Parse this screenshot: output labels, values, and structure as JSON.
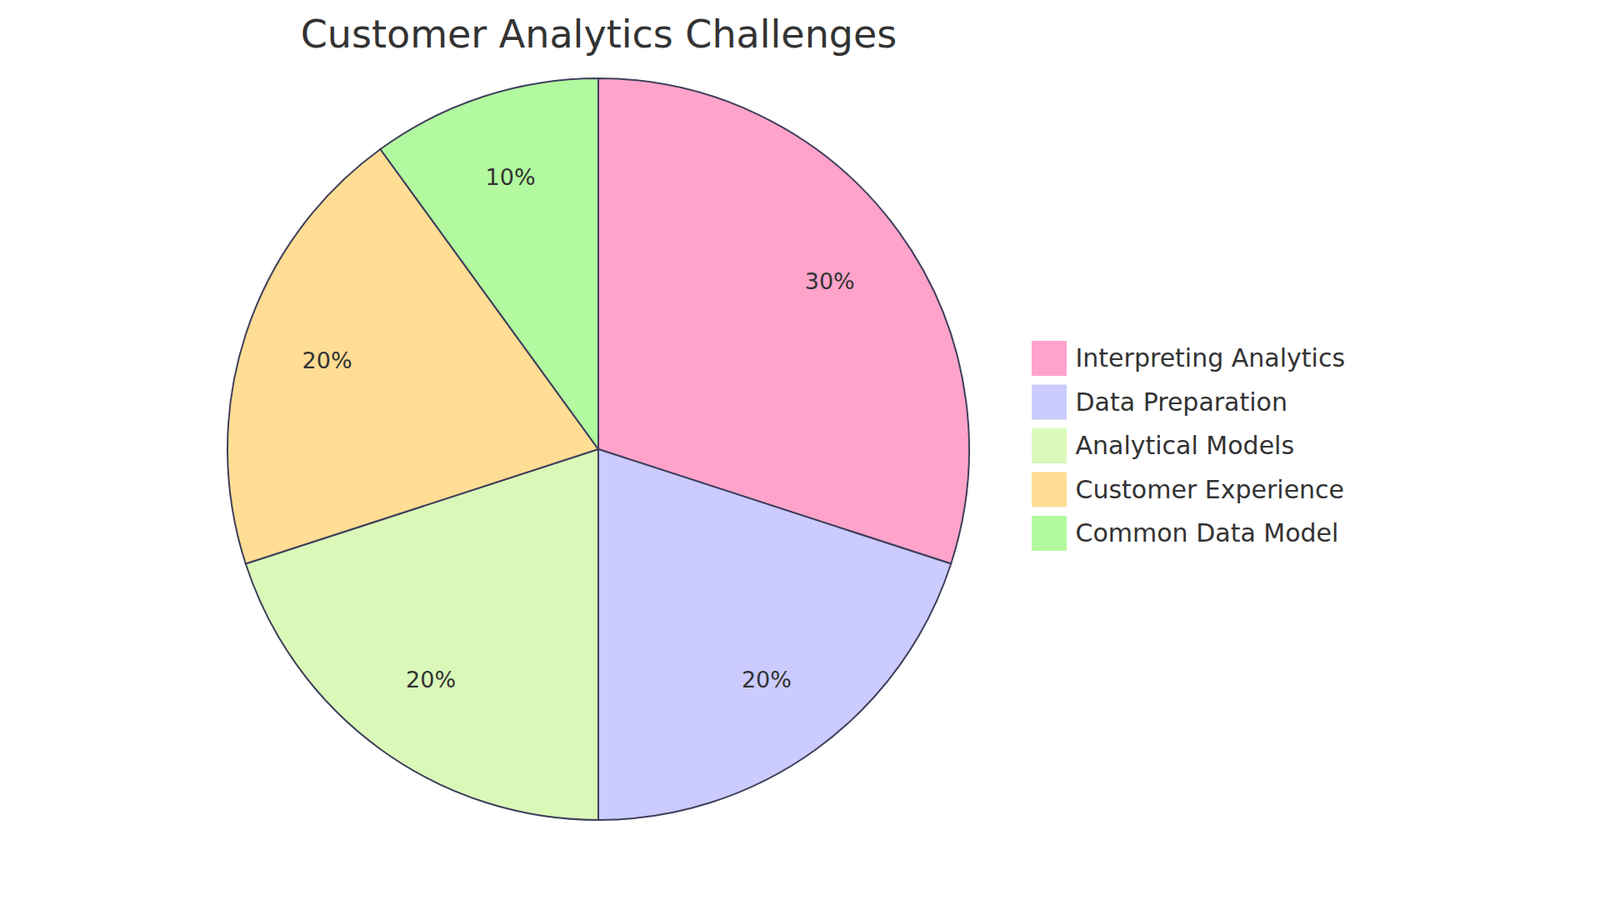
{
  "chart_data": {
    "type": "pie",
    "title": "Customer Analytics Challenges",
    "categories": [
      "Interpreting Analytics",
      "Data Preparation",
      "Analytical Models",
      "Customer Experience",
      "Common Data Model"
    ],
    "values": [
      30,
      20,
      20,
      20,
      10
    ],
    "value_labels": [
      "30%",
      "20%",
      "20%",
      "20%",
      "10%"
    ],
    "colors": [
      "#ffa3cb",
      "#cbcbff",
      "#daf9b9",
      "#ffdd94",
      "#b2f99f"
    ],
    "data_labels": true,
    "legend": "right"
  }
}
